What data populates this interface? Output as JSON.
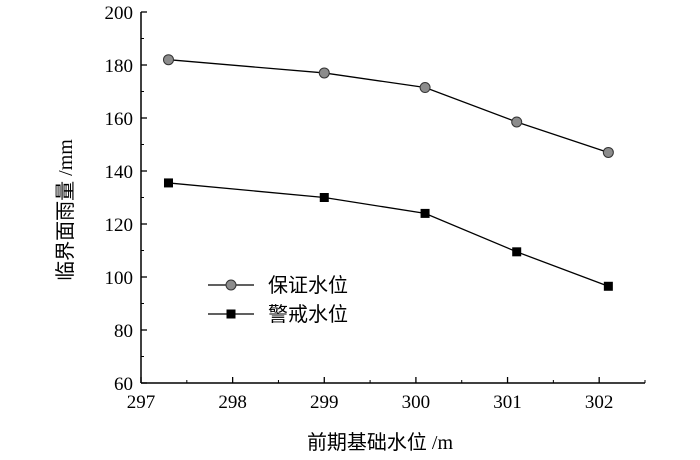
{
  "chart_data": {
    "type": "line",
    "xlabel": "前期基础水位 /m",
    "ylabel": "临界面雨量 /mm",
    "xlim": [
      297,
      302.5
    ],
    "ylim": [
      60,
      200
    ],
    "xticks": [
      297,
      298,
      299,
      300,
      301,
      302
    ],
    "yticks": [
      60,
      80,
      100,
      120,
      140,
      160,
      180,
      200
    ],
    "grid": false,
    "legend_position": "bottom-left",
    "series": [
      {
        "name": "保证水位",
        "marker": "circle",
        "color": "#000000",
        "marker_color": "#8c8c8c",
        "x": [
          297.3,
          299.0,
          300.1,
          301.1,
          302.1
        ],
        "y": [
          182,
          177,
          171.5,
          158.5,
          147
        ]
      },
      {
        "name": "警戒水位",
        "marker": "square",
        "color": "#000000",
        "marker_color": "#000000",
        "x": [
          297.3,
          299.0,
          300.1,
          301.1,
          302.1
        ],
        "y": [
          135.5,
          130,
          124,
          109.5,
          96.5
        ]
      }
    ]
  }
}
